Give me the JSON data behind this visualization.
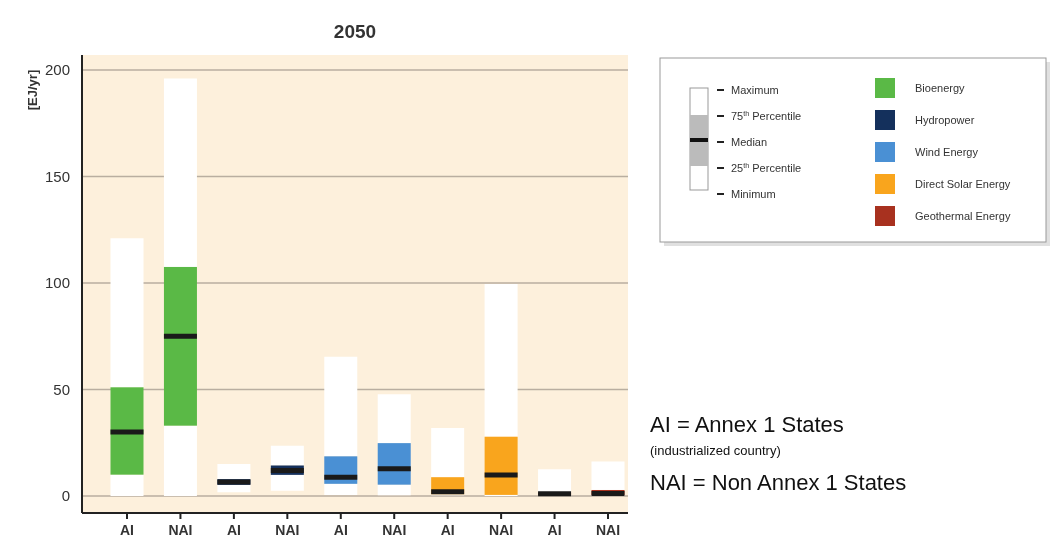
{
  "chart_data": {
    "type": "box",
    "title": "2050",
    "ylabel": "[EJ/yr]",
    "categories": [
      "AI",
      "NAI",
      "AI",
      "NAI",
      "AI",
      "NAI",
      "AI",
      "NAI",
      "AI",
      "NAI"
    ],
    "ylim": [
      -8,
      207
    ],
    "yticks": [
      0,
      50,
      100,
      150,
      200
    ],
    "grid": "y",
    "legend": "right",
    "series": [
      {
        "name": "Bioenergy",
        "color": "#5ab946",
        "boxes": [
          {
            "low": 0,
            "q1": 10,
            "median": 30,
            "q3": 51,
            "high": 121
          },
          {
            "low": 0,
            "q1": 33,
            "median": 75,
            "q3": 107.5,
            "high": 196
          },
          null,
          null,
          null,
          null,
          null,
          null,
          null,
          null
        ]
      },
      {
        "name": "Hydropower",
        "color": "#14305c",
        "boxes": [
          null,
          null,
          {
            "low": 1.7,
            "q1": 5.2,
            "median": 6.6,
            "q3": 7.9,
            "high": 15
          },
          {
            "low": 2.4,
            "q1": 9.9,
            "median": 12,
            "q3": 14.3,
            "high": 23.6
          },
          null,
          null,
          null,
          null,
          null,
          null
        ]
      },
      {
        "name": "Wind Energy",
        "color": "#4a90d4",
        "boxes": [
          null,
          null,
          null,
          null,
          {
            "low": 0.5,
            "q1": 5.7,
            "median": 8.8,
            "q3": 18.6,
            "high": 65.4
          },
          {
            "low": 0.3,
            "q1": 5.3,
            "median": 12.8,
            "q3": 24.8,
            "high": 47.7
          },
          null,
          null,
          null,
          null
        ]
      },
      {
        "name": "Direct Solar Energy",
        "color": "#f9a51d",
        "boxes": [
          null,
          null,
          null,
          null,
          null,
          null,
          {
            "low": 0.3,
            "q1": 0.8,
            "median": 2,
            "q3": 8.8,
            "high": 31.9
          },
          {
            "low": 0,
            "q1": 0.5,
            "median": 9.8,
            "q3": 27.8,
            "high": 99.5
          },
          null,
          null
        ]
      },
      {
        "name": "Geothermal Energy",
        "color": "#a8311f",
        "boxes": [
          null,
          null,
          null,
          null,
          null,
          null,
          null,
          null,
          {
            "low": 0,
            "q1": 0.5,
            "median": 1,
            "q3": 1.5,
            "high": 12.5
          },
          {
            "low": 0,
            "q1": 0.5,
            "median": 1.2,
            "q3": 2.8,
            "high": 16.2
          }
        ]
      }
    ],
    "annotations": [
      "Maximum",
      "75$^{th}$ Percentile",
      "Median",
      "25$^{th}$ Percentile",
      "Minimum",
      "AI = Annex 1 States",
      "(industrialized country)",
      "NAI = Non Annex 1 States"
    ]
  }
}
